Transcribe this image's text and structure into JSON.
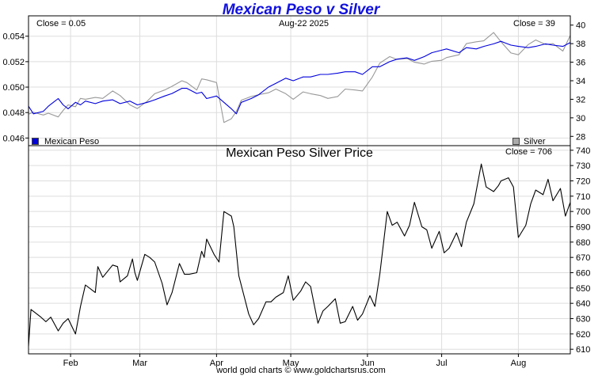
{
  "title": "Mexican Peso v Silver",
  "footer": "world gold charts © www.goldchartsrus.com",
  "colors": {
    "peso": "#0000dd",
    "silver": "#999999",
    "price": "#000000",
    "title": "#1111dd"
  },
  "chart_data": [
    {
      "type": "line",
      "title": "Mexican Peso v Silver",
      "date_label": "Aug-22  2025",
      "close_left_label": "Close = 0.05",
      "close_right_label": "Close = 39",
      "grid": true,
      "legend": [
        "Mexican Peso",
        "Silver"
      ],
      "legend_placement": "bottom",
      "x_ticks": [
        "Feb",
        "Mar",
        "Apr",
        "May",
        "Jun",
        "Jul",
        "Aug"
      ],
      "y_left": {
        "ticks": [
          "0.054",
          "0.052",
          "0.050",
          "0.048",
          "0.046"
        ],
        "range": [
          0.0454,
          0.0556
        ]
      },
      "y_right": {
        "ticks": [
          "40",
          "38",
          "36",
          "34",
          "32",
          "30",
          "28"
        ],
        "range": [
          27,
          41
        ]
      },
      "x_range": [
        "2025-01-15",
        "2025-08-22"
      ],
      "series": [
        {
          "name": "Mexican Peso",
          "axis": "left",
          "points": [
            [
              "2025-01-15",
              0.0485
            ],
            [
              "2025-01-17",
              0.0479
            ],
            [
              "2025-01-21",
              0.0481
            ],
            [
              "2025-01-23",
              0.0485
            ],
            [
              "2025-01-27",
              0.0491
            ],
            [
              "2025-01-29",
              0.0486
            ],
            [
              "2025-01-31",
              0.0483
            ],
            [
              "2025-02-03",
              0.0488
            ],
            [
              "2025-02-05",
              0.0486
            ],
            [
              "2025-02-07",
              0.0489
            ],
            [
              "2025-02-11",
              0.0487
            ],
            [
              "2025-02-14",
              0.0489
            ],
            [
              "2025-02-18",
              0.049
            ],
            [
              "2025-02-21",
              0.0487
            ],
            [
              "2025-02-25",
              0.0489
            ],
            [
              "2025-02-28",
              0.0486
            ],
            [
              "2025-03-04",
              0.0488
            ],
            [
              "2025-03-07",
              0.049
            ],
            [
              "2025-03-11",
              0.0493
            ],
            [
              "2025-03-14",
              0.0495
            ],
            [
              "2025-03-18",
              0.0499
            ],
            [
              "2025-03-20",
              0.0499
            ],
            [
              "2025-03-24",
              0.0495
            ],
            [
              "2025-03-26",
              0.0496
            ],
            [
              "2025-03-28",
              0.0491
            ],
            [
              "2025-04-01",
              0.0493
            ],
            [
              "2025-04-04",
              0.0488
            ],
            [
              "2025-04-07",
              0.0483
            ],
            [
              "2025-04-09",
              0.0479
            ],
            [
              "2025-04-11",
              0.0488
            ],
            [
              "2025-04-15",
              0.0491
            ],
            [
              "2025-04-18",
              0.0494
            ],
            [
              "2025-04-22",
              0.05
            ],
            [
              "2025-04-25",
              0.0503
            ],
            [
              "2025-04-29",
              0.0507
            ],
            [
              "2025-05-02",
              0.0505
            ],
            [
              "2025-05-06",
              0.0508
            ],
            [
              "2025-05-09",
              0.0508
            ],
            [
              "2025-05-13",
              0.051
            ],
            [
              "2025-05-16",
              0.051
            ],
            [
              "2025-05-20",
              0.0511
            ],
            [
              "2025-05-23",
              0.0512
            ],
            [
              "2025-05-27",
              0.0512
            ],
            [
              "2025-05-30",
              0.051
            ],
            [
              "2025-06-03",
              0.0516
            ],
            [
              "2025-06-06",
              0.0516
            ],
            [
              "2025-06-10",
              0.052
            ],
            [
              "2025-06-13",
              0.0522
            ],
            [
              "2025-06-17",
              0.0523
            ],
            [
              "2025-06-20",
              0.0521
            ],
            [
              "2025-06-24",
              0.0524
            ],
            [
              "2025-06-27",
              0.0527
            ],
            [
              "2025-07-01",
              0.0529
            ],
            [
              "2025-07-03",
              0.053
            ],
            [
              "2025-07-08",
              0.0527
            ],
            [
              "2025-07-11",
              0.0531
            ],
            [
              "2025-07-15",
              0.053
            ],
            [
              "2025-07-18",
              0.0532
            ],
            [
              "2025-07-22",
              0.0534
            ],
            [
              "2025-07-25",
              0.0536
            ],
            [
              "2025-07-29",
              0.0533
            ],
            [
              "2025-08-01",
              0.0532
            ],
            [
              "2025-08-05",
              0.0531
            ],
            [
              "2025-08-08",
              0.0532
            ],
            [
              "2025-08-12",
              0.0534
            ],
            [
              "2025-08-15",
              0.0533
            ],
            [
              "2025-08-19",
              0.0532
            ],
            [
              "2025-08-22",
              0.0535
            ]
          ]
        },
        {
          "name": "Silver",
          "axis": "right",
          "points": [
            [
              "2025-01-15",
              30.4
            ],
            [
              "2025-01-17",
              30.6
            ],
            [
              "2025-01-21",
              30.3
            ],
            [
              "2025-01-23",
              30.5
            ],
            [
              "2025-01-27",
              30.1
            ],
            [
              "2025-01-29",
              30.8
            ],
            [
              "2025-01-31",
              31.4
            ],
            [
              "2025-02-03",
              31.2
            ],
            [
              "2025-02-05",
              32.1
            ],
            [
              "2025-02-07",
              32.0
            ],
            [
              "2025-02-11",
              32.2
            ],
            [
              "2025-02-14",
              32.1
            ],
            [
              "2025-02-18",
              32.9
            ],
            [
              "2025-02-21",
              32.4
            ],
            [
              "2025-02-25",
              31.4
            ],
            [
              "2025-02-28",
              31.0
            ],
            [
              "2025-03-04",
              31.8
            ],
            [
              "2025-03-07",
              32.6
            ],
            [
              "2025-03-11",
              33.0
            ],
            [
              "2025-03-14",
              33.4
            ],
            [
              "2025-03-18",
              34.0
            ],
            [
              "2025-03-20",
              33.8
            ],
            [
              "2025-03-24",
              33.0
            ],
            [
              "2025-03-26",
              34.2
            ],
            [
              "2025-03-28",
              34.1
            ],
            [
              "2025-04-01",
              33.8
            ],
            [
              "2025-04-04",
              29.5
            ],
            [
              "2025-04-07",
              29.9
            ],
            [
              "2025-04-09",
              30.7
            ],
            [
              "2025-04-11",
              31.9
            ],
            [
              "2025-04-15",
              32.3
            ],
            [
              "2025-04-18",
              32.5
            ],
            [
              "2025-04-22",
              32.7
            ],
            [
              "2025-04-25",
              33.1
            ],
            [
              "2025-04-29",
              32.6
            ],
            [
              "2025-05-02",
              32.0
            ],
            [
              "2025-05-06",
              32.8
            ],
            [
              "2025-05-09",
              32.6
            ],
            [
              "2025-05-13",
              32.4
            ],
            [
              "2025-05-16",
              32.1
            ],
            [
              "2025-05-20",
              32.3
            ],
            [
              "2025-05-23",
              33.1
            ],
            [
              "2025-05-27",
              33.0
            ],
            [
              "2025-05-30",
              32.9
            ],
            [
              "2025-06-03",
              34.4
            ],
            [
              "2025-06-06",
              35.9
            ],
            [
              "2025-06-10",
              36.6
            ],
            [
              "2025-06-13",
              36.3
            ],
            [
              "2025-06-17",
              36.4
            ],
            [
              "2025-06-20",
              36.0
            ],
            [
              "2025-06-24",
              35.8
            ],
            [
              "2025-06-27",
              36.1
            ],
            [
              "2025-07-01",
              36.2
            ],
            [
              "2025-07-03",
              36.5
            ],
            [
              "2025-07-08",
              36.8
            ],
            [
              "2025-07-11",
              38.0
            ],
            [
              "2025-07-15",
              38.2
            ],
            [
              "2025-07-18",
              38.3
            ],
            [
              "2025-07-22",
              39.2
            ],
            [
              "2025-07-25",
              38.2
            ],
            [
              "2025-07-29",
              37.0
            ],
            [
              "2025-08-01",
              36.8
            ],
            [
              "2025-08-05",
              37.9
            ],
            [
              "2025-08-08",
              38.4
            ],
            [
              "2025-08-12",
              37.9
            ],
            [
              "2025-08-15",
              38.0
            ],
            [
              "2025-08-19",
              37.2
            ],
            [
              "2025-08-22",
              38.9
            ]
          ]
        }
      ]
    },
    {
      "type": "line",
      "title": "Mexican Peso Silver Price",
      "close_label": "Close = 706",
      "grid": true,
      "x_ticks": [
        "Feb",
        "Mar",
        "Apr",
        "May",
        "Jun",
        "Jul",
        "Aug"
      ],
      "y_right": {
        "ticks": [
          "740",
          "730",
          "720",
          "710",
          "700",
          "690",
          "680",
          "670",
          "660",
          "650",
          "640",
          "630",
          "620",
          "610"
        ],
        "range": [
          607,
          743
        ]
      },
      "x_range": [
        "2025-01-15",
        "2025-08-22"
      ],
      "series": [
        {
          "axis": "right",
          "points": [
            [
              "2025-01-15",
              612
            ],
            [
              "2025-01-16",
              636
            ],
            [
              "2025-01-20",
              631
            ],
            [
              "2025-01-22",
              628
            ],
            [
              "2025-01-24",
              631
            ],
            [
              "2025-01-27",
              622
            ],
            [
              "2025-01-29",
              627
            ],
            [
              "2025-01-31",
              630
            ],
            [
              "2025-02-03",
              620
            ],
            [
              "2025-02-05",
              638
            ],
            [
              "2025-02-07",
              652
            ],
            [
              "2025-02-11",
              647
            ],
            [
              "2025-02-12",
              664
            ],
            [
              "2025-02-14",
              657
            ],
            [
              "2025-02-18",
              665
            ],
            [
              "2025-02-20",
              664
            ],
            [
              "2025-02-21",
              654
            ],
            [
              "2025-02-24",
              658
            ],
            [
              "2025-02-26",
              669
            ],
            [
              "2025-02-27",
              660
            ],
            [
              "2025-02-28",
              655
            ],
            [
              "2025-03-03",
              672
            ],
            [
              "2025-03-05",
              670
            ],
            [
              "2025-03-07",
              667
            ],
            [
              "2025-03-10",
              653
            ],
            [
              "2025-03-12",
              639
            ],
            [
              "2025-03-14",
              647
            ],
            [
              "2025-03-17",
              666
            ],
            [
              "2025-03-19",
              659
            ],
            [
              "2025-03-21",
              659
            ],
            [
              "2025-03-24",
              660
            ],
            [
              "2025-03-26",
              674
            ],
            [
              "2025-03-27",
              670
            ],
            [
              "2025-03-28",
              682
            ],
            [
              "2025-03-31",
              672
            ],
            [
              "2025-04-02",
              667
            ],
            [
              "2025-04-04",
              700
            ],
            [
              "2025-04-07",
              697
            ],
            [
              "2025-04-08",
              690
            ],
            [
              "2025-04-10",
              658
            ],
            [
              "2025-04-14",
              633
            ],
            [
              "2025-04-16",
              626
            ],
            [
              "2025-04-18",
              630
            ],
            [
              "2025-04-21",
              641
            ],
            [
              "2025-04-23",
              641
            ],
            [
              "2025-04-25",
              644
            ],
            [
              "2025-04-28",
              647
            ],
            [
              "2025-04-30",
              658
            ],
            [
              "2025-05-02",
              642
            ],
            [
              "2025-05-05",
              648
            ],
            [
              "2025-05-07",
              654
            ],
            [
              "2025-05-09",
              651
            ],
            [
              "2025-05-12",
              627
            ],
            [
              "2025-05-14",
              635
            ],
            [
              "2025-05-16",
              638
            ],
            [
              "2025-05-19",
              643
            ],
            [
              "2025-05-21",
              627
            ],
            [
              "2025-05-23",
              628
            ],
            [
              "2025-05-26",
              638
            ],
            [
              "2025-05-28",
              629
            ],
            [
              "2025-05-30",
              633
            ],
            [
              "2025-06-02",
              645
            ],
            [
              "2025-06-04",
              638
            ],
            [
              "2025-06-06",
              659
            ],
            [
              "2025-06-09",
              700
            ],
            [
              "2025-06-11",
              691
            ],
            [
              "2025-06-13",
              693
            ],
            [
              "2025-06-16",
              684
            ],
            [
              "2025-06-18",
              691
            ],
            [
              "2025-06-20",
              706
            ],
            [
              "2025-06-23",
              690
            ],
            [
              "2025-06-25",
              688
            ],
            [
              "2025-06-27",
              676
            ],
            [
              "2025-06-30",
              687
            ],
            [
              "2025-07-02",
              673
            ],
            [
              "2025-07-04",
              676
            ],
            [
              "2025-07-07",
              686
            ],
            [
              "2025-07-09",
              677
            ],
            [
              "2025-07-11",
              693
            ],
            [
              "2025-07-14",
              705
            ],
            [
              "2025-07-17",
              731
            ],
            [
              "2025-07-19",
              716
            ],
            [
              "2025-07-22",
              713
            ],
            [
              "2025-07-24",
              717
            ],
            [
              "2025-07-25",
              720
            ],
            [
              "2025-07-28",
              722
            ],
            [
              "2025-07-30",
              716
            ],
            [
              "2025-08-01",
              683
            ],
            [
              "2025-08-04",
              691
            ],
            [
              "2025-08-06",
              705
            ],
            [
              "2025-08-08",
              714
            ],
            [
              "2025-08-11",
              711
            ],
            [
              "2025-08-13",
              721
            ],
            [
              "2025-08-15",
              707
            ],
            [
              "2025-08-18",
              715
            ],
            [
              "2025-08-20",
              697
            ],
            [
              "2025-08-22",
              706
            ]
          ]
        }
      ]
    }
  ]
}
